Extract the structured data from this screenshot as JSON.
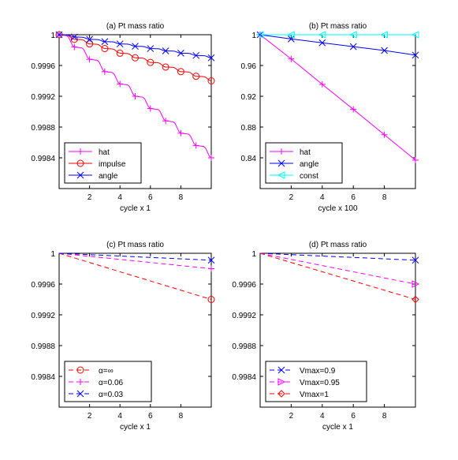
{
  "chart_data": [
    {
      "type": "line",
      "title": "(a) Pt mass ratio",
      "xlabel": "cycle x 1",
      "ylabel": "",
      "xlim": [
        0,
        10
      ],
      "ylim": [
        0.998,
        1.0
      ],
      "xticks": [
        2,
        4,
        6,
        8
      ],
      "xtick_labels": [
        "2",
        "4",
        "6",
        "8"
      ],
      "yticks": [
        0.9984,
        0.9988,
        0.9992,
        0.9996,
        1.0
      ],
      "ytick_labels": [
        "0.9984",
        "0.9988",
        "0.9992",
        "0.9996",
        "1"
      ],
      "grid": false,
      "legend_position": "bottom-left",
      "series": [
        {
          "name": "hat",
          "color": "#ff00ff",
          "marker": "plus",
          "style": "solid",
          "shape": "staircase",
          "x": [
            0,
            1,
            2,
            3,
            4,
            5,
            6,
            7,
            8,
            9,
            10
          ],
          "y": [
            1.0,
            0.99984,
            0.99968,
            0.99952,
            0.99936,
            0.9992,
            0.99904,
            0.99888,
            0.99872,
            0.99856,
            0.9984
          ]
        },
        {
          "name": "impulse",
          "color": "#ff0000",
          "marker": "circle",
          "style": "solid",
          "shape": "staircase",
          "x": [
            0,
            1,
            2,
            3,
            4,
            5,
            6,
            7,
            8,
            9,
            10
          ],
          "y": [
            1.0,
            0.99994,
            0.99988,
            0.99982,
            0.99976,
            0.9997,
            0.99964,
            0.99958,
            0.99952,
            0.99946,
            0.9994
          ]
        },
        {
          "name": "angle",
          "color": "#0000ff",
          "marker": "x",
          "style": "solid",
          "shape": "staircase",
          "x": [
            0,
            1,
            2,
            3,
            4,
            5,
            6,
            7,
            8,
            9,
            10
          ],
          "y": [
            1.0,
            0.99997,
            0.99994,
            0.99991,
            0.99988,
            0.99985,
            0.99982,
            0.99979,
            0.99976,
            0.99973,
            0.9997
          ]
        }
      ]
    },
    {
      "type": "line",
      "title": "(b) Pt mass ratio",
      "xlabel": "cycle x 100",
      "ylabel": "",
      "xlim": [
        0,
        10
      ],
      "ylim": [
        0.8,
        1.0
      ],
      "xticks": [
        2,
        4,
        6,
        8
      ],
      "xtick_labels": [
        "2",
        "4",
        "6",
        "8"
      ],
      "yticks": [
        0.84,
        0.88,
        0.92,
        0.96,
        1.0
      ],
      "ytick_labels": [
        "0.84",
        "0.88",
        "0.92",
        "0.96",
        "1"
      ],
      "grid": false,
      "legend_position": "bottom-left",
      "series": [
        {
          "name": "hat",
          "color": "#ff00ff",
          "marker": "plus",
          "style": "solid",
          "x": [
            0,
            2,
            4,
            6,
            8,
            10
          ],
          "y": [
            1.0,
            0.9685,
            0.9355,
            0.903,
            0.87,
            0.837
          ]
        },
        {
          "name": "angle",
          "color": "#0000ff",
          "marker": "x",
          "style": "solid",
          "x": [
            0,
            2,
            4,
            6,
            8,
            10
          ],
          "y": [
            1.0,
            0.9945,
            0.9895,
            0.9845,
            0.9795,
            0.9735
          ]
        },
        {
          "name": "const",
          "color": "#00ffff",
          "marker": "triangle-left",
          "style": "solid",
          "x": [
            0,
            2,
            4,
            6,
            8,
            10
          ],
          "y": [
            1.0,
            1.0,
            1.0,
            1.0,
            1.0,
            1.0
          ]
        }
      ]
    },
    {
      "type": "line",
      "title": "(c) Pt mass ratio",
      "xlabel": "cycle x 1",
      "ylabel": "",
      "xlim": [
        0,
        10
      ],
      "ylim": [
        0.998,
        1.0
      ],
      "xticks": [
        2,
        4,
        6,
        8
      ],
      "xtick_labels": [
        "2",
        "4",
        "6",
        "8"
      ],
      "yticks": [
        0.9984,
        0.9988,
        0.9992,
        0.9996,
        1.0
      ],
      "ytick_labels": [
        "0.9984",
        "0.9988",
        "0.9992",
        "0.9996",
        "1"
      ],
      "grid": false,
      "legend_position": "bottom-left",
      "series": [
        {
          "name": "α=∞",
          "color": "#ff0000",
          "marker": "circle",
          "style": "dashed",
          "x": [
            0,
            10
          ],
          "y": [
            1.0,
            0.9994
          ],
          "marker_x": [
            10
          ]
        },
        {
          "name": "α=0.06",
          "color": "#ff00ff",
          "marker": "plus",
          "style": "dashed",
          "x": [
            0,
            10
          ],
          "y": [
            1.0,
            0.9998
          ],
          "marker_x": [
            10
          ]
        },
        {
          "name": "α=0.03",
          "color": "#0000ff",
          "marker": "x",
          "style": "dashed",
          "x": [
            0,
            10
          ],
          "y": [
            1.0,
            0.99991
          ],
          "marker_x": [
            10
          ]
        }
      ]
    },
    {
      "type": "line",
      "title": "(d) Pt mass ratio",
      "xlabel": "cycle x 1",
      "ylabel": "",
      "xlim": [
        0,
        10
      ],
      "ylim": [
        0.998,
        1.0
      ],
      "xticks": [
        2,
        4,
        6,
        8
      ],
      "xtick_labels": [
        "2",
        "4",
        "6",
        "8"
      ],
      "yticks": [
        0.9984,
        0.9988,
        0.9992,
        0.9996,
        1.0
      ],
      "ytick_labels": [
        "0.9984",
        "0.9988",
        "0.9992",
        "0.9996",
        "1"
      ],
      "grid": false,
      "legend_position": "bottom-left",
      "series": [
        {
          "name": "Vmax=0.9",
          "color": "#0000ff",
          "marker": "x",
          "style": "dashed",
          "x": [
            0,
            10
          ],
          "y": [
            1.0,
            0.99991
          ],
          "marker_x": [
            10
          ]
        },
        {
          "name": "Vmax=0.95",
          "color": "#ff00ff",
          "marker": "triangle-right",
          "style": "dashed",
          "x": [
            0,
            10
          ],
          "y": [
            1.0,
            0.9996
          ],
          "marker_x": [
            10
          ]
        },
        {
          "name": "Vmax=1",
          "color": "#ff0000",
          "marker": "diamond",
          "style": "dashed",
          "x": [
            0,
            10
          ],
          "y": [
            1.0,
            0.9994
          ],
          "marker_x": [
            10
          ]
        }
      ]
    }
  ]
}
